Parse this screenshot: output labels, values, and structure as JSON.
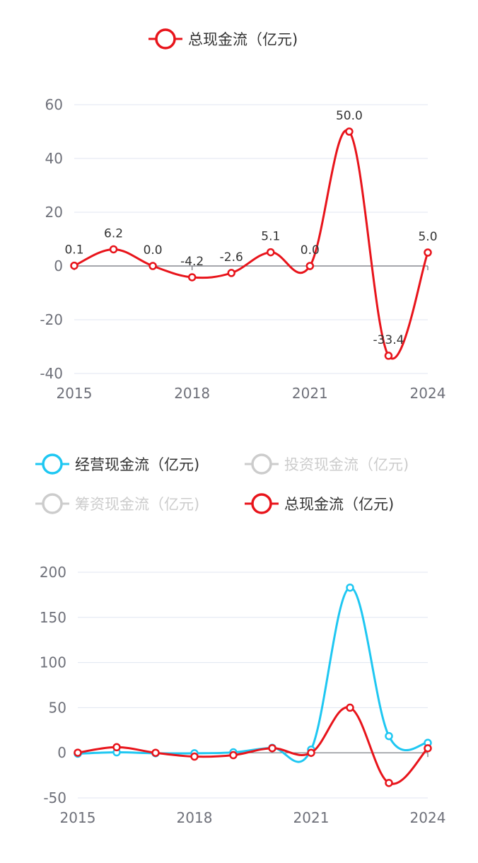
{
  "chart_data": [
    {
      "type": "line",
      "smooth": true,
      "legend": {
        "position": "top-center",
        "items": [
          {
            "name": "总现金流（亿元)",
            "color": "#e8141b",
            "active": true
          }
        ]
      },
      "x": [
        "2015",
        "2016",
        "2017",
        "2018",
        "2019",
        "2020",
        "2021",
        "2022",
        "2023",
        "2024"
      ],
      "x_tick_labels": [
        "2015",
        "2018",
        "2021",
        "2024"
      ],
      "ylim": [
        -40,
        60
      ],
      "y_ticks": [
        "60",
        "40",
        "20",
        "0",
        "-20",
        "-40"
      ],
      "grid": true,
      "series": [
        {
          "name": "总现金流（亿元)",
          "color": "#e8141b",
          "values": [
            0.1,
            6.2,
            0.0,
            -4.2,
            -2.6,
            5.1,
            0.0,
            50.0,
            -33.4,
            5.0
          ],
          "data_labels": [
            "0.1",
            "6.2",
            "0.0",
            "-4.2",
            "-2.6",
            "5.1",
            "0.0",
            "50.0",
            "-33.4",
            "5.0"
          ]
        }
      ]
    },
    {
      "type": "line",
      "smooth": true,
      "legend": {
        "position": "top-center",
        "items": [
          {
            "name": "经营现金流（亿元)",
            "color": "#1ec7f2",
            "active": true
          },
          {
            "name": "投资现金流（亿元)",
            "color": "#cccccc",
            "active": false
          },
          {
            "name": "筹资现金流（亿元)",
            "color": "#cccccc",
            "active": false
          },
          {
            "name": "总现金流（亿元)",
            "color": "#e8141b",
            "active": true
          }
        ]
      },
      "x": [
        "2015",
        "2016",
        "2017",
        "2018",
        "2019",
        "2020",
        "2021",
        "2022",
        "2023",
        "2024"
      ],
      "x_tick_labels": [
        "2015",
        "2018",
        "2021",
        "2024"
      ],
      "ylim": [
        -50,
        200
      ],
      "y_ticks": [
        "200",
        "150",
        "100",
        "50",
        "0",
        "-50"
      ],
      "grid": true,
      "series": [
        {
          "name": "经营现金流（亿元)",
          "color": "#1ec7f2",
          "values": [
            -1.0,
            0.5,
            -0.5,
            -0.5,
            0.5,
            5.5,
            3.5,
            183.0,
            18.5,
            11.0
          ]
        },
        {
          "name": "总现金流（亿元)",
          "color": "#e8141b",
          "values": [
            0.1,
            6.2,
            0.0,
            -4.2,
            -2.6,
            5.1,
            0.0,
            50.0,
            -33.4,
            5.0
          ]
        }
      ]
    }
  ]
}
